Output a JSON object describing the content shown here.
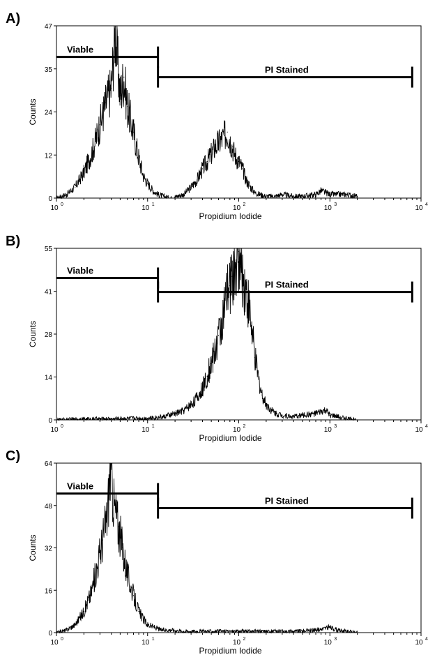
{
  "chart_data": [
    {
      "type": "histogram",
      "panel_label": "A)",
      "xlabel": "Propidium Iodide",
      "ylabel": "Counts",
      "xscale": "log",
      "xlim": [
        1,
        10000
      ],
      "ylim": [
        0,
        47
      ],
      "yticks": [
        "0",
        "12",
        "24",
        "35",
        "47"
      ],
      "xticks": [
        {
          "base": "10",
          "exp": "0"
        },
        {
          "base": "10",
          "exp": "1"
        },
        {
          "base": "10",
          "exp": "2"
        },
        {
          "base": "10",
          "exp": "3"
        },
        {
          "base": "10",
          "exp": "4"
        }
      ],
      "gates": [
        {
          "label": "Viable",
          "x_start": 1,
          "x_end": 13,
          "y": 38.5
        },
        {
          "label": "PI Stained",
          "x_start": 13,
          "x_end": 8000,
          "y": 33
        }
      ],
      "x": [
        1,
        1.3,
        1.6,
        2,
        2.5,
        3,
        3.5,
        4,
        4.4,
        5,
        5.5,
        6,
        7,
        8,
        9,
        10,
        11.5,
        13,
        15,
        18,
        21,
        25,
        30,
        35,
        40,
        45,
        50,
        55,
        60,
        65,
        70,
        75,
        80,
        85,
        90,
        100,
        110,
        120,
        135,
        150,
        170,
        200,
        250,
        300,
        400,
        500,
        700,
        800,
        1000,
        1500,
        2000
      ],
      "values": [
        0,
        1,
        3,
        7,
        13,
        20,
        26,
        30,
        46,
        28,
        33,
        25,
        18,
        11,
        6,
        4,
        2,
        1,
        0.5,
        0,
        0.5,
        1,
        3,
        5,
        8,
        10,
        12,
        14,
        15,
        16,
        17,
        18,
        16,
        14,
        12,
        10,
        8,
        5,
        3,
        1.5,
        1,
        0.5,
        0.5,
        1,
        0.5,
        0.5,
        1,
        2,
        1,
        1,
        0.5
      ]
    },
    {
      "type": "histogram",
      "panel_label": "B)",
      "xlabel": "Propidium Iodide",
      "ylabel": "Counts",
      "xscale": "log",
      "xlim": [
        1,
        10000
      ],
      "ylim": [
        0,
        55
      ],
      "yticks": [
        "0",
        "14",
        "28",
        "41",
        "55"
      ],
      "xticks": [
        {
          "base": "10",
          "exp": "0"
        },
        {
          "base": "10",
          "exp": "1"
        },
        {
          "base": "10",
          "exp": "2"
        },
        {
          "base": "10",
          "exp": "3"
        },
        {
          "base": "10",
          "exp": "4"
        }
      ],
      "gates": [
        {
          "label": "Viable",
          "x_start": 1,
          "x_end": 13,
          "y": 45.5
        },
        {
          "label": "PI Stained",
          "x_start": 13,
          "x_end": 8000,
          "y": 41
        }
      ],
      "x": [
        1,
        2,
        4,
        6,
        10,
        15,
        20,
        25,
        30,
        35,
        40,
        45,
        50,
        55,
        60,
        65,
        70,
        75,
        80,
        85,
        90,
        95,
        100,
        105,
        110,
        120,
        130,
        140,
        150,
        165,
        180,
        200,
        230,
        260,
        300,
        400,
        500,
        700,
        900,
        1000,
        1500,
        2000
      ],
      "values": [
        0,
        0.3,
        0.3,
        0.5,
        0.5,
        1,
        2,
        3,
        5,
        7,
        10,
        14,
        18,
        22,
        27,
        31,
        36,
        40,
        43,
        46,
        48,
        50,
        54,
        49,
        46,
        42,
        36,
        28,
        20,
        13,
        8,
        5,
        3,
        2,
        1.5,
        1,
        1.5,
        2,
        3,
        1.5,
        0.5,
        0
      ]
    },
    {
      "type": "histogram",
      "panel_label": "C)",
      "xlabel": "Propidium Iodide",
      "ylabel": "Counts",
      "xscale": "log",
      "xlim": [
        1,
        10000
      ],
      "ylim": [
        0,
        64
      ],
      "yticks": [
        "0",
        "16",
        "32",
        "48",
        "64"
      ],
      "xticks": [
        {
          "base": "10",
          "exp": "0"
        },
        {
          "base": "10",
          "exp": "1"
        },
        {
          "base": "10",
          "exp": "2"
        },
        {
          "base": "10",
          "exp": "3"
        },
        {
          "base": "10",
          "exp": "4"
        }
      ],
      "gates": [
        {
          "label": "Viable",
          "x_start": 1,
          "x_end": 13,
          "y": 52.5
        },
        {
          "label": "PI Stained",
          "x_start": 13,
          "x_end": 8000,
          "y": 47
        }
      ],
      "x": [
        1,
        1.3,
        1.6,
        2,
        2.4,
        2.8,
        3.2,
        3.6,
        3.9,
        4.3,
        4.8,
        5.3,
        6,
        7,
        8,
        9,
        10,
        12,
        14,
        18,
        25,
        40,
        60,
        100,
        200,
        400,
        700,
        1000,
        1200,
        1500,
        2000
      ],
      "values": [
        0,
        1,
        3,
        8,
        15,
        25,
        35,
        44,
        62,
        48,
        40,
        32,
        22,
        14,
        8,
        5,
        3,
        2,
        1,
        1,
        0.5,
        0.5,
        0.5,
        0.5,
        0.5,
        0.5,
        1,
        2,
        1,
        0.5,
        0
      ]
    }
  ]
}
